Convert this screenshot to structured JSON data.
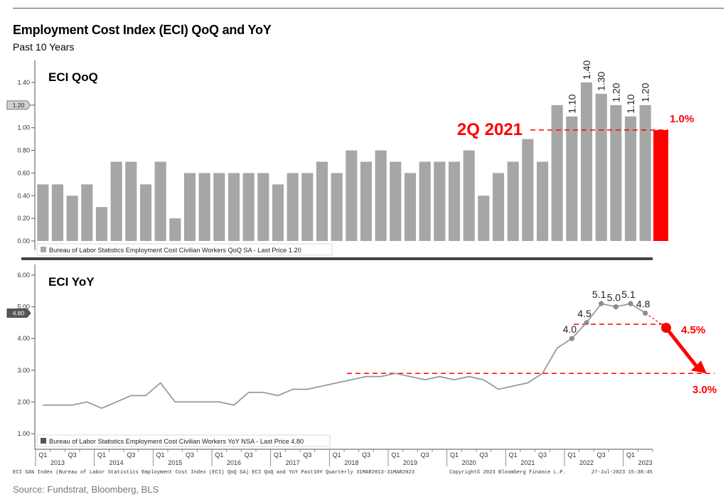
{
  "header": {
    "title": "Employment Cost Index (ECI) QoQ and YoY",
    "subtitle": "Past 10 Years"
  },
  "footer": {
    "bloomberg_note": "ECI SA% Index (Bureau of Labor Statistics Employment Cost Index (ECI) QoQ SA) ECI QoQ and YoY Past10Y  Quarterly 31MAR2013-31MAR2023",
    "copyright": "Copyright© 2023 Bloomberg Finance L.P.",
    "timestamp": "27-Jul-2023 15:38:45",
    "source": "Source: Fundstrat, Bloomberg, BLS"
  },
  "chart_data": [
    {
      "type": "bar",
      "panel_title": "ECI QoQ",
      "legend": "Bureau of Labor Statistics Employment Cost Civilian Workers QoQ SA - Last Price 1.20",
      "last_price_label": "1.20",
      "ylim": [
        0,
        1.5
      ],
      "yticks": [
        "0.00",
        "0.20",
        "0.40",
        "0.60",
        "0.80",
        "1.00",
        "1.20",
        "1.40"
      ],
      "values": [
        0.5,
        0.5,
        0.4,
        0.5,
        0.3,
        0.7,
        0.7,
        0.5,
        0.7,
        0.2,
        0.6,
        0.6,
        0.6,
        0.6,
        0.6,
        0.6,
        0.5,
        0.6,
        0.6,
        0.7,
        0.6,
        0.8,
        0.7,
        0.8,
        0.7,
        0.6,
        0.7,
        0.7,
        0.7,
        0.8,
        0.4,
        0.6,
        0.7,
        0.9,
        0.7,
        1.2,
        1.1,
        1.4,
        1.3,
        1.2,
        1.1,
        1.2
      ],
      "data_labels": [
        {
          "index": 36,
          "text": "1.10"
        },
        {
          "index": 37,
          "text": "1.40"
        },
        {
          "index": 38,
          "text": "1.30"
        },
        {
          "index": 39,
          "text": "1.20"
        },
        {
          "index": 40,
          "text": "1.10"
        },
        {
          "index": 41,
          "text": "1.20"
        }
      ],
      "reference_value": 0.98,
      "annotation_2q2021": "2Q 2021",
      "annotation_pct": "1.0%",
      "bar_color": "#a6a6a6",
      "highlight_color": "#ff0000"
    },
    {
      "type": "line",
      "panel_title": "ECI YoY",
      "legend": "Bureau of Labor Statistics Employment Cost Civilian Workers YoY NSA - Last Price 4.80",
      "last_price_label": "4.80",
      "ylim": [
        0.7,
        6.2
      ],
      "yticks": [
        "1.00",
        "2.00",
        "3.00",
        "4.00",
        "5.00",
        "6.00"
      ],
      "values": [
        1.9,
        1.9,
        1.9,
        2.0,
        1.8,
        2.0,
        2.2,
        2.2,
        2.6,
        2.0,
        2.0,
        2.0,
        2.0,
        1.9,
        2.3,
        2.3,
        2.2,
        2.4,
        2.4,
        2.5,
        2.6,
        2.7,
        2.8,
        2.8,
        2.9,
        2.8,
        2.7,
        2.8,
        2.7,
        2.8,
        2.7,
        2.4,
        2.5,
        2.6,
        2.9,
        3.7,
        4.0,
        4.5,
        5.1,
        5.0,
        5.1,
        4.8
      ],
      "points": [
        {
          "index": 36,
          "text": "4.0"
        },
        {
          "index": 37,
          "text": "4.5"
        },
        {
          "index": 38,
          "text": "5.1"
        },
        {
          "index": 39,
          "text": "5.0"
        },
        {
          "index": 40,
          "text": "5.1"
        },
        {
          "index": 41,
          "text": "4.8"
        }
      ],
      "ref_high": 4.45,
      "ref_low": 2.9,
      "annotation_high": "4.5%",
      "annotation_low": "3.0%",
      "line_color": "#999999",
      "highlight_color": "#ff0000"
    }
  ],
  "x_axis": {
    "quarter_ticks": [
      {
        "index": 0,
        "text": "Q1"
      },
      {
        "index": 2,
        "text": "Q3"
      },
      {
        "index": 4,
        "text": "Q1"
      },
      {
        "index": 6,
        "text": "Q3"
      },
      {
        "index": 8,
        "text": "Q1"
      },
      {
        "index": 10,
        "text": "Q3"
      },
      {
        "index": 12,
        "text": "Q1"
      },
      {
        "index": 14,
        "text": "Q3"
      },
      {
        "index": 16,
        "text": "Q1"
      },
      {
        "index": 18,
        "text": "Q3"
      },
      {
        "index": 20,
        "text": "Q1"
      },
      {
        "index": 22,
        "text": "Q3"
      },
      {
        "index": 24,
        "text": "Q1"
      },
      {
        "index": 26,
        "text": "Q3"
      },
      {
        "index": 28,
        "text": "Q1"
      },
      {
        "index": 30,
        "text": "Q3"
      },
      {
        "index": 32,
        "text": "Q1"
      },
      {
        "index": 34,
        "text": "Q3"
      },
      {
        "index": 36,
        "text": "Q1"
      },
      {
        "index": 38,
        "text": "Q3"
      },
      {
        "index": 40,
        "text": "Q1"
      }
    ],
    "year_labels": [
      {
        "index": 1,
        "text": "2013"
      },
      {
        "index": 5,
        "text": "2014"
      },
      {
        "index": 9,
        "text": "2015"
      },
      {
        "index": 13,
        "text": "2016"
      },
      {
        "index": 17,
        "text": "2017"
      },
      {
        "index": 21,
        "text": "2018"
      },
      {
        "index": 25,
        "text": "2019"
      },
      {
        "index": 29,
        "text": "2020"
      },
      {
        "index": 33,
        "text": "2021"
      },
      {
        "index": 37,
        "text": "2022"
      },
      {
        "index": 41,
        "text": "2023"
      }
    ]
  }
}
